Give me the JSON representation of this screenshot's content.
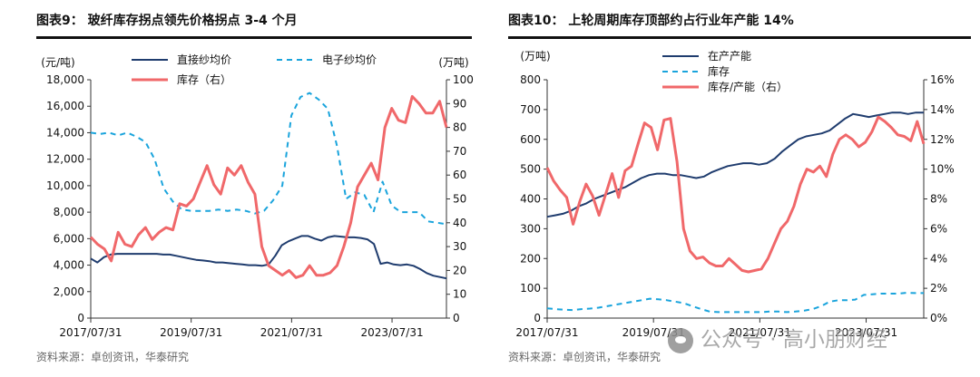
{
  "charts": [
    {
      "title": "图表9：  玻纤库存拐点领先价格拐点 3-4 个月",
      "source": "资料来源：卓创资讯，华泰研究",
      "left_unit": "(元/吨)",
      "right_unit": "(万吨)",
      "x_ticks": [
        "2017/07/31",
        "2019/07/31",
        "2021/07/31",
        "2023/07/31"
      ],
      "y_left_ticks": [
        "0",
        "2,000",
        "4,000",
        "6,000",
        "8,000",
        "10,000",
        "12,000",
        "14,000",
        "16,000",
        "18,000"
      ],
      "y_right_ticks": [
        "0",
        "10",
        "20",
        "30",
        "40",
        "50",
        "60",
        "70",
        "80",
        "90",
        "100"
      ],
      "legend": [
        "直接纱均价",
        "电子纱均价",
        "库存（右）"
      ]
    },
    {
      "title": "图表10：  上轮周期库存顶部约占行业年产能 14%",
      "source": "资料来源：卓创资讯，华泰研究",
      "left_unit": "(万吨)",
      "x_ticks": [
        "2017/07/31",
        "2019/07/31",
        "2021/07/31",
        "2023/07/31"
      ],
      "y_left_ticks": [
        "0",
        "100",
        "200",
        "300",
        "400",
        "500",
        "600",
        "700",
        "800"
      ],
      "y_right_ticks": [
        "0%",
        "2%",
        "4%",
        "6%",
        "8%",
        "10%",
        "12%",
        "14%",
        "16%"
      ],
      "legend": [
        "在产产能",
        "库存",
        "库存/产能（右）"
      ]
    }
  ],
  "watermark": "公众号 · 高小朋财经",
  "chart_data": [
    {
      "type": "line",
      "title": "玻纤库存拐点领先价格拐点 3-4 个月",
      "x_start": "2017-07",
      "x_end": "2024-08",
      "ylim": [
        0,
        18000
      ],
      "ylim_right": [
        0,
        100
      ],
      "series": [
        {
          "name": "直接纱均价",
          "axis": "left",
          "style": "solid",
          "color": "#1f3c6e",
          "values": [
            4500,
            4200,
            4600,
            4800,
            4850,
            4850,
            4850,
            4850,
            4850,
            4850,
            4850,
            4800,
            4800,
            4700,
            4600,
            4500,
            4400,
            4350,
            4300,
            4200,
            4200,
            4150,
            4100,
            4050,
            4000,
            4000,
            3950,
            4050,
            4700,
            5500,
            5800,
            6000,
            6200,
            6200,
            6000,
            5850,
            6100,
            6200,
            6150,
            6100,
            6100,
            6050,
            5950,
            5600,
            4100,
            4200,
            4050,
            4000,
            4050,
            3950,
            3700,
            3400,
            3200,
            3100,
            3000
          ]
        },
        {
          "name": "电子纱均价",
          "axis": "left",
          "style": "dashed",
          "color": "#1aa4dc",
          "values": [
            14000,
            13900,
            14000,
            13800,
            14000,
            13700,
            13300,
            12000,
            9800,
            8800,
            8200,
            8100,
            8100,
            8100,
            8200,
            8100,
            8200,
            8100,
            7900,
            8100,
            8900,
            10000,
            15300,
            16700,
            17000,
            16500,
            15800,
            13000,
            9000,
            9500,
            9300,
            8000,
            10300,
            8500,
            8000,
            8000,
            8000,
            7300,
            7200,
            7100
          ]
        },
        {
          "name": "库存（右）",
          "axis": "right",
          "style": "solid",
          "color": "#f0686a",
          "values": [
            34,
            31,
            29,
            24,
            36,
            31,
            30,
            35,
            38,
            33,
            36,
            38,
            37,
            48,
            47,
            50,
            57,
            64,
            56,
            52,
            63,
            60,
            64,
            57,
            52,
            30,
            22,
            20,
            18,
            20,
            17,
            18,
            22,
            18,
            18,
            19,
            22,
            30,
            40,
            55,
            60,
            65,
            58,
            80,
            88,
            83,
            82,
            93,
            90,
            86,
            86,
            91,
            80
          ]
        }
      ]
    },
    {
      "type": "line",
      "title": "上轮周期库存顶部约占行业年产能 14%",
      "x_start": "2017-07",
      "x_end": "2024-08",
      "ylim": [
        0,
        800
      ],
      "ylim_right": [
        "0%",
        "16%"
      ],
      "series": [
        {
          "name": "在产产能",
          "axis": "left",
          "style": "solid",
          "color": "#1f3c6e",
          "values": [
            340,
            345,
            350,
            360,
            375,
            385,
            400,
            410,
            420,
            430,
            440,
            455,
            470,
            480,
            485,
            485,
            480,
            480,
            475,
            470,
            475,
            490,
            500,
            510,
            515,
            520,
            520,
            515,
            520,
            535,
            560,
            580,
            600,
            610,
            615,
            620,
            630,
            650,
            670,
            685,
            680,
            675,
            680,
            685,
            690,
            690,
            685,
            690,
            690
          ]
        },
        {
          "name": "库存",
          "axis": "left",
          "style": "dashed",
          "color": "#1aa4dc",
          "values": [
            33,
            30,
            28,
            27,
            30,
            32,
            35,
            40,
            45,
            50,
            55,
            60,
            65,
            63,
            60,
            55,
            50,
            40,
            30,
            22,
            20,
            20,
            20,
            20,
            20,
            20,
            22,
            22,
            20,
            22,
            25,
            30,
            40,
            55,
            60,
            60,
            62,
            78,
            80,
            82,
            82,
            82,
            85,
            84,
            84
          ]
        },
        {
          "name": "库存/产能（右）",
          "axis": "right",
          "style": "solid",
          "color": "#f0686a",
          "values": [
            10.1,
            9.2,
            8.6,
            8.1,
            6.3,
            7.8,
            9.0,
            8.2,
            6.9,
            8.3,
            9.7,
            8.1,
            9.9,
            10.2,
            11.7,
            13.1,
            12.8,
            11.3,
            13.3,
            13.4,
            10.5,
            6.0,
            4.5,
            4.0,
            4.1,
            3.7,
            3.5,
            3.5,
            4.0,
            3.6,
            3.2,
            3.1,
            3.2,
            3.3,
            4.0,
            5.0,
            6.0,
            6.5,
            7.5,
            9.0,
            10.0,
            9.8,
            10.2,
            9.5,
            11.0,
            12.0,
            12.3,
            12.0,
            11.5,
            11.8,
            12.5,
            13.5,
            13.2,
            12.8,
            12.3,
            12.2,
            11.9,
            13.2,
            11.7
          ]
        }
      ]
    }
  ]
}
